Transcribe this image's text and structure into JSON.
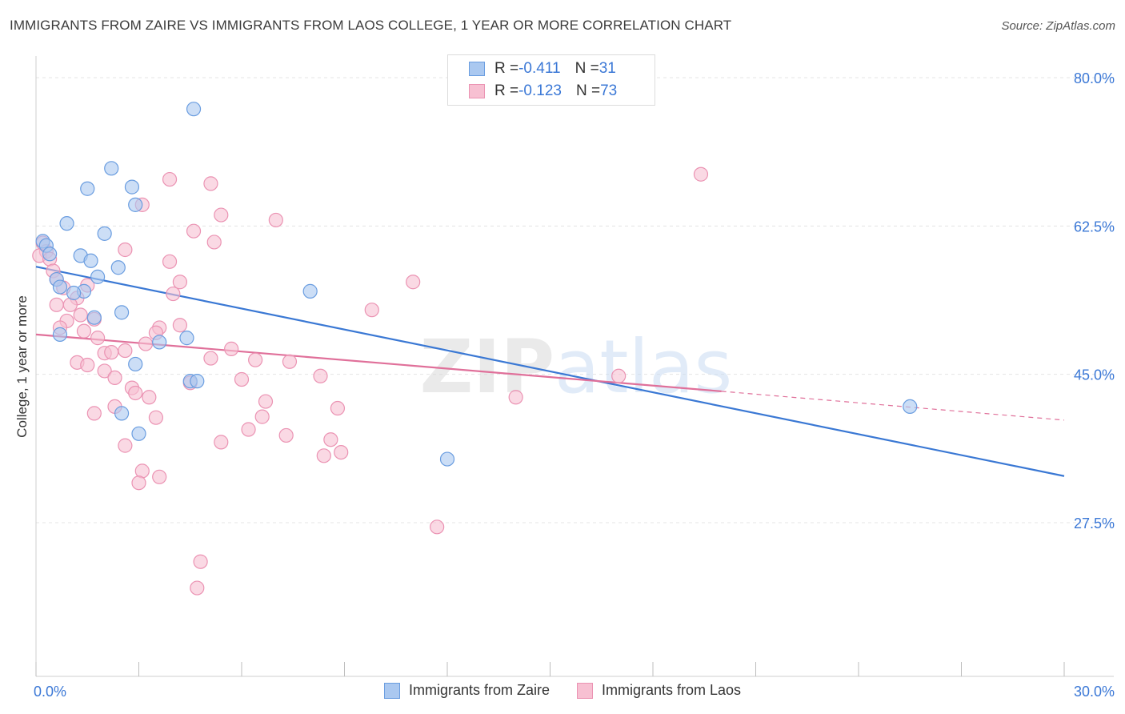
{
  "title": "IMMIGRANTS FROM ZAIRE VS IMMIGRANTS FROM LAOS COLLEGE, 1 YEAR OR MORE CORRELATION CHART",
  "source": "Source: ZipAtlas.com",
  "watermark": "ZIPatlas",
  "legend_top": [
    {
      "r_label": "R = ",
      "r_value": "-0.411",
      "n_label": "N = ",
      "n_value": "31"
    },
    {
      "r_label": "R = ",
      "r_value": "-0.123",
      "n_label": "N = ",
      "n_value": "73"
    }
  ],
  "colors": {
    "zaire_fill": "#aac8f0",
    "zaire_stroke": "#6a9de0",
    "zaire_line": "#3a78d4",
    "laos_fill": "#f7c0d2",
    "laos_stroke": "#eb93b3",
    "laos_line": "#e0709a",
    "tick_text": "#3b78d6",
    "grid": "#e4e4e4"
  },
  "chart_data": {
    "type": "scatter",
    "title": "IMMIGRANTS FROM ZAIRE VS IMMIGRANTS FROM LAOS COLLEGE, 1 YEAR OR MORE CORRELATION CHART",
    "xlabel": "",
    "ylabel": "College, 1 year or more",
    "xlim": [
      0,
      30
    ],
    "ylim": [
      10,
      85
    ],
    "x_tick_labels": [
      "0.0%",
      "30.0%"
    ],
    "y_ticks": [
      27.5,
      45.0,
      62.5,
      80.0
    ],
    "y_tick_labels": [
      "27.5%",
      "45.0%",
      "62.5%",
      "80.0%"
    ],
    "series": [
      {
        "name": "Immigrants from Zaire",
        "R": -0.411,
        "N": 31,
        "trend": {
          "x": [
            0,
            30
          ],
          "y": [
            57.7,
            33.0
          ]
        },
        "points": [
          {
            "x": 4.6,
            "y": 76.3
          },
          {
            "x": 2.2,
            "y": 69.3
          },
          {
            "x": 1.5,
            "y": 66.9
          },
          {
            "x": 2.8,
            "y": 67.1
          },
          {
            "x": 2.9,
            "y": 65.0
          },
          {
            "x": 0.9,
            "y": 62.8
          },
          {
            "x": 2.0,
            "y": 61.6
          },
          {
            "x": 0.2,
            "y": 60.7
          },
          {
            "x": 0.3,
            "y": 60.2
          },
          {
            "x": 0.4,
            "y": 59.2
          },
          {
            "x": 1.3,
            "y": 59.0
          },
          {
            "x": 1.6,
            "y": 58.4
          },
          {
            "x": 2.4,
            "y": 57.6
          },
          {
            "x": 1.8,
            "y": 56.5
          },
          {
            "x": 0.6,
            "y": 56.2
          },
          {
            "x": 0.7,
            "y": 55.3
          },
          {
            "x": 1.4,
            "y": 54.8
          },
          {
            "x": 1.1,
            "y": 54.6
          },
          {
            "x": 8.0,
            "y": 54.8
          },
          {
            "x": 2.5,
            "y": 52.3
          },
          {
            "x": 1.7,
            "y": 51.7
          },
          {
            "x": 0.7,
            "y": 49.7
          },
          {
            "x": 3.6,
            "y": 48.8
          },
          {
            "x": 4.4,
            "y": 49.3
          },
          {
            "x": 2.9,
            "y": 46.2
          },
          {
            "x": 4.5,
            "y": 44.2
          },
          {
            "x": 2.5,
            "y": 40.4
          },
          {
            "x": 3.0,
            "y": 38.0
          },
          {
            "x": 12.0,
            "y": 35.0
          },
          {
            "x": 25.5,
            "y": 41.2
          },
          {
            "x": 4.7,
            "y": 44.2
          }
        ]
      },
      {
        "name": "Immigrants from Laos",
        "R": -0.123,
        "N": 73,
        "trend": {
          "x": [
            0,
            20
          ],
          "y": [
            49.7,
            43.0
          ]
        },
        "trend_dashed": {
          "x": [
            20,
            30
          ],
          "y": [
            43.0,
            39.6
          ]
        },
        "points": [
          {
            "x": 19.4,
            "y": 68.6
          },
          {
            "x": 3.9,
            "y": 68.0
          },
          {
            "x": 5.1,
            "y": 67.5
          },
          {
            "x": 3.1,
            "y": 65.0
          },
          {
            "x": 5.4,
            "y": 63.8
          },
          {
            "x": 7.0,
            "y": 63.2
          },
          {
            "x": 4.6,
            "y": 61.9
          },
          {
            "x": 5.2,
            "y": 60.6
          },
          {
            "x": 2.6,
            "y": 59.7
          },
          {
            "x": 3.9,
            "y": 58.3
          },
          {
            "x": 0.2,
            "y": 60.5
          },
          {
            "x": 0.3,
            "y": 59.5
          },
          {
            "x": 0.1,
            "y": 59.0
          },
          {
            "x": 0.4,
            "y": 58.6
          },
          {
            "x": 0.5,
            "y": 57.2
          },
          {
            "x": 0.6,
            "y": 56.2
          },
          {
            "x": 1.5,
            "y": 55.5
          },
          {
            "x": 4.2,
            "y": 55.9
          },
          {
            "x": 11.0,
            "y": 55.9
          },
          {
            "x": 0.8,
            "y": 55.2
          },
          {
            "x": 4.0,
            "y": 54.5
          },
          {
            "x": 1.2,
            "y": 54.0
          },
          {
            "x": 0.6,
            "y": 53.2
          },
          {
            "x": 1.0,
            "y": 53.2
          },
          {
            "x": 9.8,
            "y": 52.6
          },
          {
            "x": 1.3,
            "y": 52.0
          },
          {
            "x": 1.7,
            "y": 51.5
          },
          {
            "x": 0.9,
            "y": 51.3
          },
          {
            "x": 4.2,
            "y": 50.8
          },
          {
            "x": 3.6,
            "y": 50.5
          },
          {
            "x": 0.7,
            "y": 50.5
          },
          {
            "x": 1.4,
            "y": 50.1
          },
          {
            "x": 3.5,
            "y": 49.9
          },
          {
            "x": 1.8,
            "y": 49.3
          },
          {
            "x": 3.2,
            "y": 48.6
          },
          {
            "x": 5.7,
            "y": 48.0
          },
          {
            "x": 2.6,
            "y": 47.8
          },
          {
            "x": 2.0,
            "y": 47.5
          },
          {
            "x": 2.2,
            "y": 47.6
          },
          {
            "x": 5.1,
            "y": 46.9
          },
          {
            "x": 6.4,
            "y": 46.7
          },
          {
            "x": 7.4,
            "y": 46.5
          },
          {
            "x": 1.2,
            "y": 46.4
          },
          {
            "x": 1.5,
            "y": 46.1
          },
          {
            "x": 2.0,
            "y": 45.4
          },
          {
            "x": 8.3,
            "y": 44.8
          },
          {
            "x": 2.3,
            "y": 44.6
          },
          {
            "x": 4.5,
            "y": 44.0
          },
          {
            "x": 6.0,
            "y": 44.4
          },
          {
            "x": 2.8,
            "y": 43.4
          },
          {
            "x": 17.0,
            "y": 44.8
          },
          {
            "x": 2.9,
            "y": 42.8
          },
          {
            "x": 3.3,
            "y": 42.3
          },
          {
            "x": 14.0,
            "y": 42.3
          },
          {
            "x": 6.7,
            "y": 41.8
          },
          {
            "x": 2.3,
            "y": 41.2
          },
          {
            "x": 8.8,
            "y": 41.0
          },
          {
            "x": 1.7,
            "y": 40.4
          },
          {
            "x": 3.5,
            "y": 39.9
          },
          {
            "x": 6.6,
            "y": 40.0
          },
          {
            "x": 6.2,
            "y": 38.5
          },
          {
            "x": 7.3,
            "y": 37.8
          },
          {
            "x": 8.6,
            "y": 37.3
          },
          {
            "x": 5.4,
            "y": 37.0
          },
          {
            "x": 2.6,
            "y": 36.6
          },
          {
            "x": 8.9,
            "y": 35.8
          },
          {
            "x": 8.4,
            "y": 35.4
          },
          {
            "x": 3.1,
            "y": 33.6
          },
          {
            "x": 3.6,
            "y": 32.9
          },
          {
            "x": 3.0,
            "y": 32.2
          },
          {
            "x": 11.7,
            "y": 27.0
          },
          {
            "x": 4.8,
            "y": 22.9
          },
          {
            "x": 4.7,
            "y": 19.8
          }
        ]
      }
    ],
    "legend": [
      "Immigrants from Zaire",
      "Immigrants from Laos"
    ]
  }
}
